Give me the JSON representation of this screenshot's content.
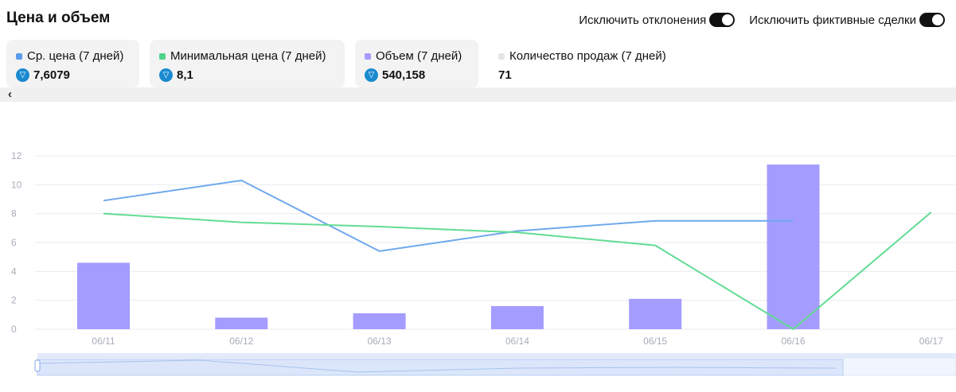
{
  "header": {
    "title": "Цена и объем",
    "toggle_outliers_label": "Исключить отклонения",
    "toggle_fake_label": "Исключить фиктивные сделки"
  },
  "stats": [
    {
      "label": "Ср. цена (7 дней)",
      "value": "7,6079",
      "color": "#5b9bea",
      "icon": "ton-coin-icon"
    },
    {
      "label": "Минимальная цена (7 дней)",
      "value": "8,1",
      "color": "#4fd38a",
      "icon": "ton-coin-icon"
    },
    {
      "label": "Объем (7 дней)",
      "value": "540,158",
      "color": "#a49cff",
      "icon": "ton-coin-icon"
    },
    {
      "label": "Количество продаж (7 дней)",
      "value": "71",
      "color": "#e6e6e6",
      "icon": ""
    }
  ],
  "scroll": {
    "left_arrow": "‹"
  },
  "chart_data": {
    "type": "bar",
    "categories": [
      "06/11",
      "06/12",
      "06/13",
      "06/14",
      "06/15",
      "06/16",
      "06/17"
    ],
    "y_ticks": [
      "0",
      "2",
      "4",
      "6",
      "8",
      "10",
      "12"
    ],
    "ylim": [
      0,
      12
    ],
    "series": [
      {
        "type": "bar",
        "values": [
          4.6,
          0.8,
          1.1,
          1.6,
          2.1,
          11.4,
          null
        ],
        "color": "#a49cff"
      },
      {
        "type": "line",
        "values": [
          8.9,
          10.3,
          5.4,
          6.8,
          7.5,
          7.5,
          null
        ],
        "color": "#6fa8ec"
      },
      {
        "type": "line",
        "values": [
          8.0,
          7.4,
          7.1,
          6.7,
          5.8,
          0.0,
          8.1
        ],
        "color": "#62dc93"
      }
    ],
    "grid": true,
    "colors": {
      "grid": "#e9ebef",
      "axis_text": "#a8adb8",
      "slider": "#dbe6fb",
      "slider_handle": "#7fa6e8"
    }
  }
}
